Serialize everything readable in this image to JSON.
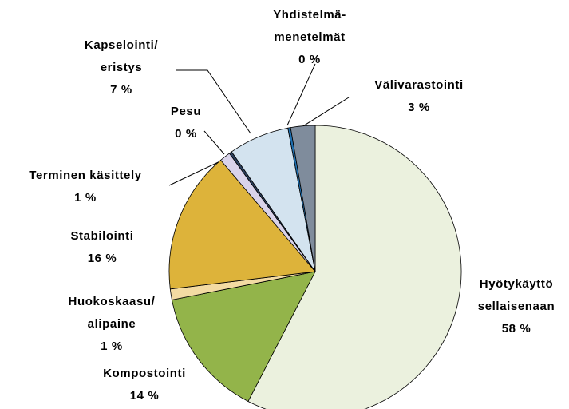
{
  "chart_data": {
    "type": "pie",
    "categories": [
      [
        "Hyötykäyttö",
        "sellaisenaan"
      ],
      [
        "Kompostointi"
      ],
      [
        "Huokoskaasu/",
        "alipaine"
      ],
      [
        "Stabilointi"
      ],
      [
        "Terminen käsittely"
      ],
      [
        "Pesu"
      ],
      [
        "Kapselointi/",
        "eristys"
      ],
      [
        "Yhdistelmä-",
        "menetelmät"
      ],
      [
        "Välivarastointi"
      ]
    ],
    "values": [
      57.6,
      14.3,
      1.2,
      15.7,
      1.2,
      0.3,
      6.7,
      0.3,
      2.7
    ],
    "value_labels": [
      "58 %",
      "14 %",
      "1 %",
      "16 %",
      "1 %",
      "0 %",
      "7 %",
      "0 %",
      "3 %"
    ],
    "colors": [
      "#ebf1de",
      "#93b44a",
      "#f3dba3",
      "#ddb33a",
      "#d9d3ea",
      "#2b3f5c",
      "#d3e3ef",
      "#1e6fb0",
      "#7f8c9c"
    ]
  }
}
